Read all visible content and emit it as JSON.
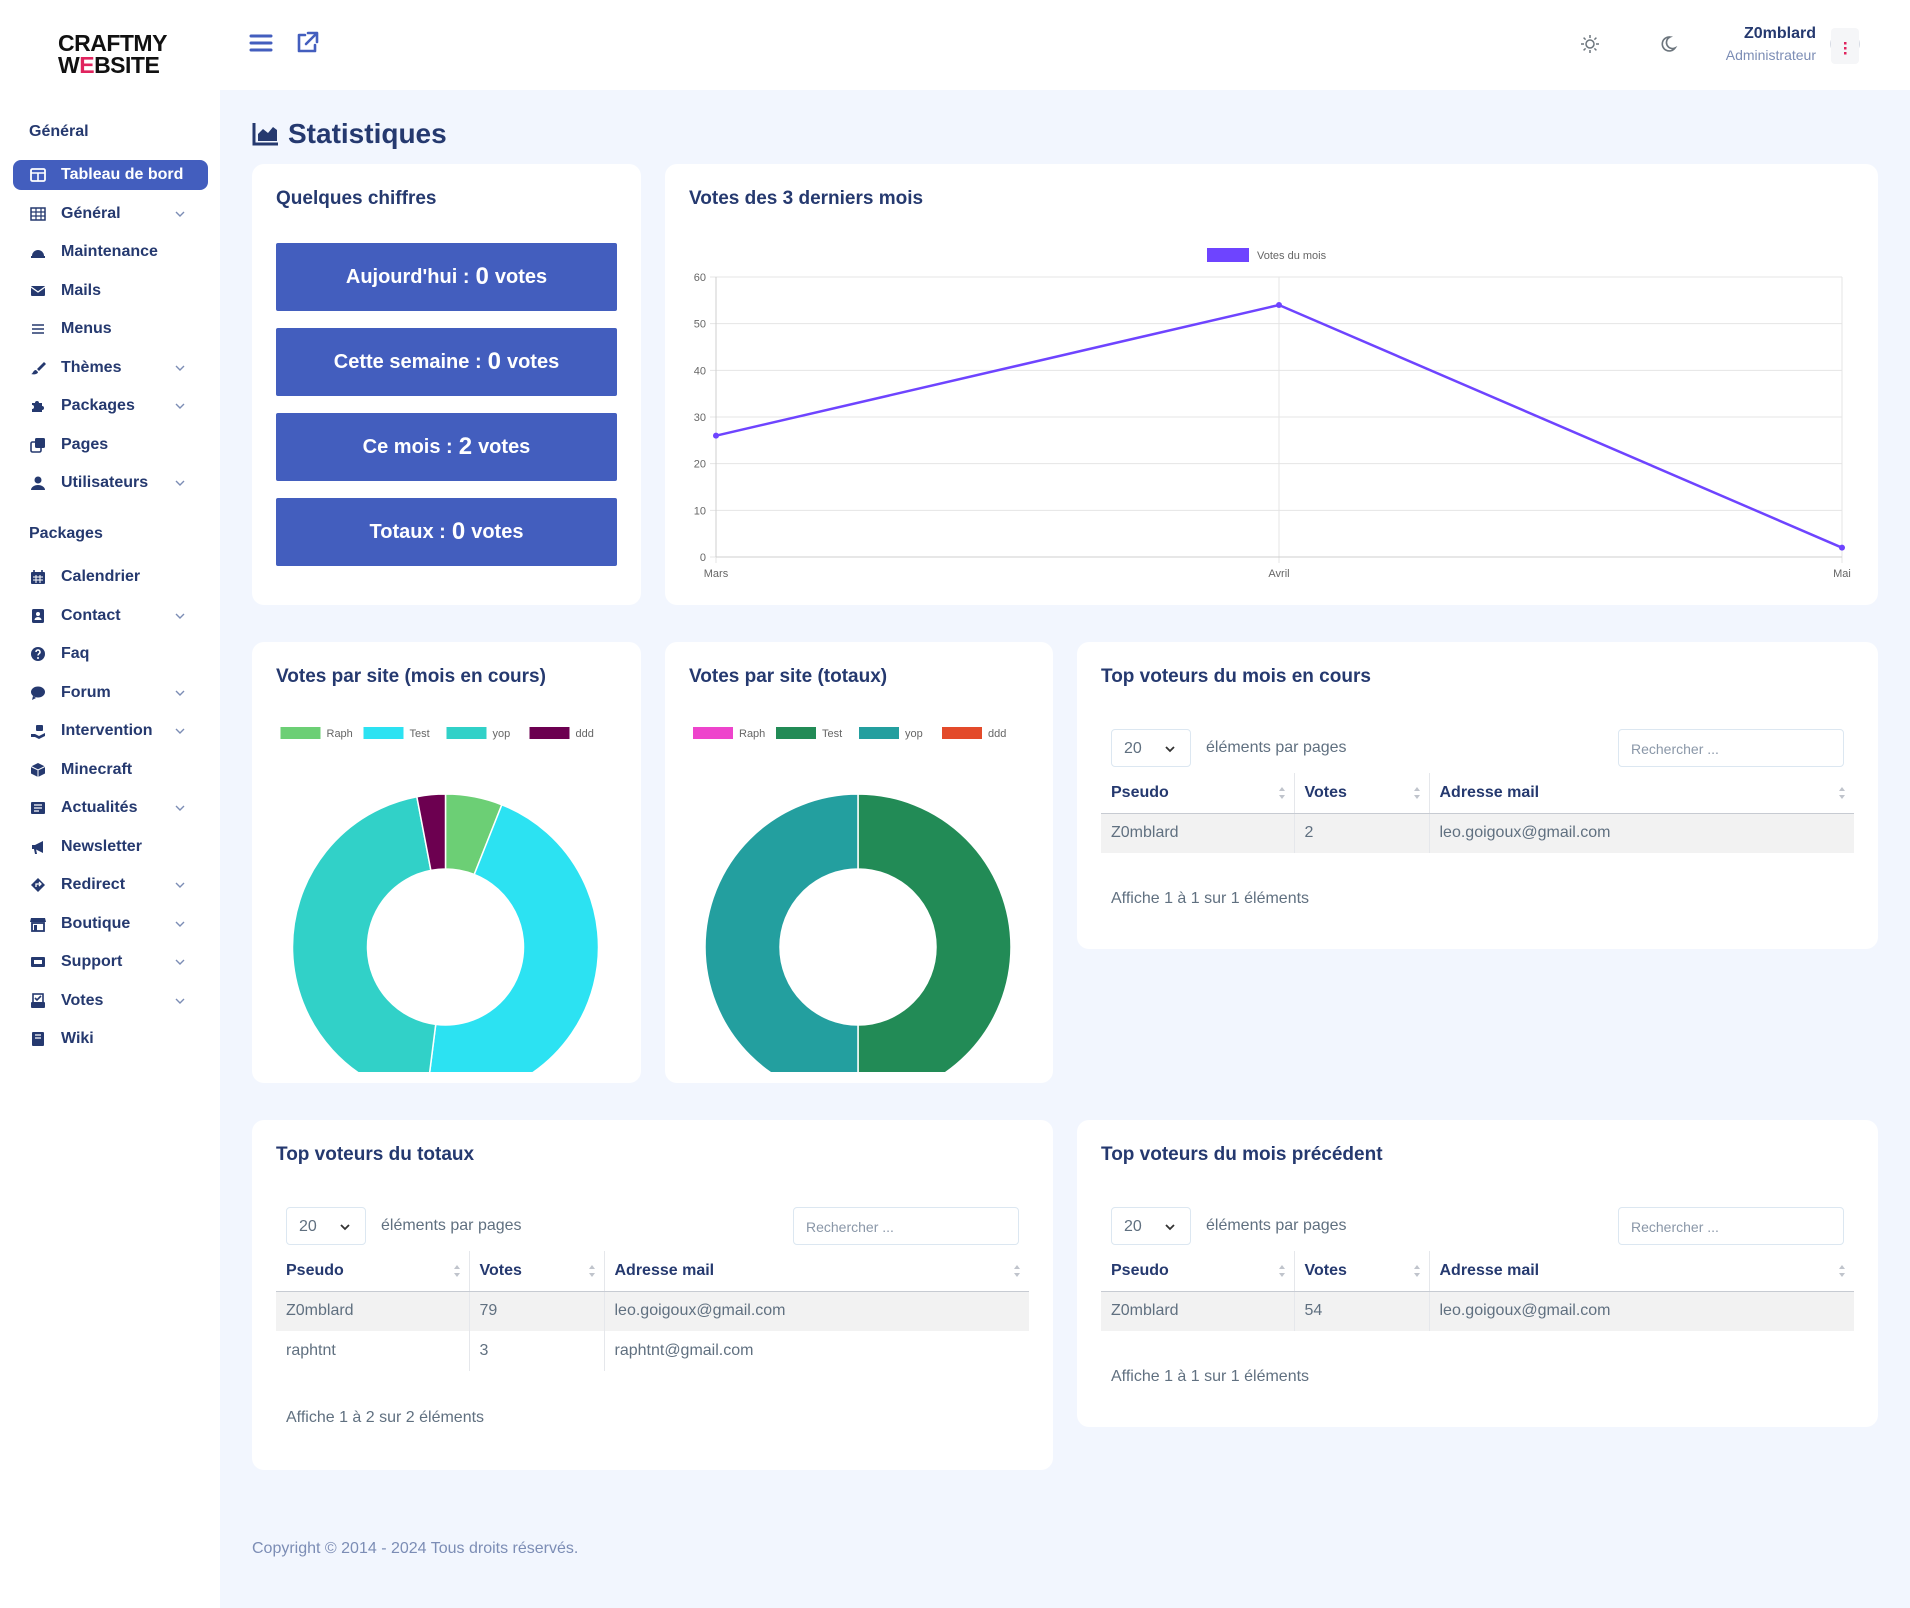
{
  "brand": {
    "line1": "CRAFTMY",
    "line2_a": "W",
    "line2_b": "E",
    "line2_c": "BSITE"
  },
  "sidebar": {
    "section_general": "Général",
    "items_general": [
      {
        "label": "Tableau de bord",
        "icon": "table-columns-icon",
        "active": true,
        "chevron": false
      },
      {
        "label": "Général",
        "icon": "grid-icon",
        "chevron": true
      },
      {
        "label": "Maintenance",
        "icon": "helmet-icon",
        "chevron": false
      },
      {
        "label": "Mails",
        "icon": "envelope-icon",
        "chevron": false
      },
      {
        "label": "Menus",
        "icon": "bars-icon",
        "chevron": false
      },
      {
        "label": "Thèmes",
        "icon": "brush-icon",
        "chevron": true
      },
      {
        "label": "Packages",
        "icon": "puzzle-icon",
        "chevron": true
      },
      {
        "label": "Pages",
        "icon": "copy-icon",
        "chevron": false
      },
      {
        "label": "Utilisateurs",
        "icon": "user-icon",
        "chevron": true
      }
    ],
    "section_packages": "Packages",
    "items_packages": [
      {
        "label": "Calendrier",
        "icon": "calendar-icon",
        "chevron": false
      },
      {
        "label": "Contact",
        "icon": "contact-book-icon",
        "chevron": true
      },
      {
        "label": "Faq",
        "icon": "question-icon",
        "chevron": false
      },
      {
        "label": "Forum",
        "icon": "comment-icon",
        "chevron": true
      },
      {
        "label": "Intervention",
        "icon": "hand-holding-icon",
        "chevron": true
      },
      {
        "label": "Minecraft",
        "icon": "cube-icon",
        "chevron": false
      },
      {
        "label": "Actualités",
        "icon": "newspaper-icon",
        "chevron": true
      },
      {
        "label": "Newsletter",
        "icon": "megaphone-icon",
        "chevron": false
      },
      {
        "label": "Redirect",
        "icon": "diamond-turn-icon",
        "chevron": true
      },
      {
        "label": "Boutique",
        "icon": "store-icon",
        "chevron": true
      },
      {
        "label": "Support",
        "icon": "ticket-icon",
        "chevron": true
      },
      {
        "label": "Votes",
        "icon": "vote-box-icon",
        "chevron": true
      },
      {
        "label": "Wiki",
        "icon": "book-icon",
        "chevron": false
      }
    ]
  },
  "topbar": {
    "user_name": "Z0mblard",
    "user_role": "Administrateur"
  },
  "page": {
    "title": "Statistiques"
  },
  "stats_card": {
    "title": "Quelques chiffres",
    "rows": [
      {
        "prefix": "Aujourd'hui :",
        "value": "0",
        "suffix": "votes"
      },
      {
        "prefix": "Cette semaine :",
        "value": "0",
        "suffix": "votes"
      },
      {
        "prefix": "Ce mois :",
        "value": "2",
        "suffix": "votes"
      },
      {
        "prefix": "Totaux :",
        "value": "0",
        "suffix": "votes"
      }
    ]
  },
  "line_card": {
    "title": "Votes des 3 derniers mois"
  },
  "pie1_card": {
    "title": "Votes par site (mois en cours)"
  },
  "pie2_card": {
    "title": "Votes par site (totaux)"
  },
  "chart_data": [
    {
      "type": "line",
      "title": "",
      "categories": [
        "Mars",
        "Avril",
        "Mai"
      ],
      "series": [
        {
          "name": "Votes du mois",
          "values": [
            26,
            54,
            2
          ],
          "color": "#6e44ff"
        }
      ],
      "ylim": [
        0,
        60
      ],
      "yticks": [
        0,
        10,
        20,
        30,
        40,
        50,
        60
      ],
      "grid": true,
      "legend": "top"
    },
    {
      "type": "pie",
      "donut": true,
      "labels": [
        "Raph",
        "Test",
        "yop",
        "ddd"
      ],
      "values": [
        6,
        46,
        45,
        3
      ],
      "colors": [
        "#6ccf75",
        "#2ce2f2",
        "#31d1c8",
        "#6c0050"
      ],
      "legend": "top"
    },
    {
      "type": "pie",
      "donut": true,
      "labels": [
        "Raph",
        "Test",
        "yop",
        "ddd"
      ],
      "values": [
        0,
        50,
        50,
        0
      ],
      "colors": [
        "#ee44cc",
        "#228b56",
        "#239f9f",
        "#e34a2a"
      ],
      "legend": "top"
    }
  ],
  "table_month": {
    "title": "Top voteurs du mois en cours",
    "length": "20",
    "length_label": "éléments par pages",
    "search_placeholder": "Rechercher ...",
    "headers": [
      "Pseudo",
      "Votes",
      "Adresse mail"
    ],
    "rows": [
      [
        "Z0mblard",
        "2",
        "leo.goigoux@gmail.com"
      ]
    ],
    "info": "Affiche 1 à 1 sur 1 éléments"
  },
  "table_total": {
    "title": "Top voteurs du totaux",
    "length": "20",
    "length_label": "éléments par pages",
    "search_placeholder": "Rechercher ...",
    "headers": [
      "Pseudo",
      "Votes",
      "Adresse mail"
    ],
    "rows": [
      [
        "Z0mblard",
        "79",
        "leo.goigoux@gmail.com"
      ],
      [
        "raphtnt",
        "3",
        "raphtnt@gmail.com"
      ]
    ],
    "info": "Affiche 1 à 2 sur 2 éléments"
  },
  "table_prev": {
    "title": "Top voteurs du mois précédent",
    "length": "20",
    "length_label": "éléments par pages",
    "search_placeholder": "Rechercher ...",
    "headers": [
      "Pseudo",
      "Votes",
      "Adresse mail"
    ],
    "rows": [
      [
        "Z0mblard",
        "54",
        "leo.goigoux@gmail.com"
      ]
    ],
    "info": "Affiche 1 à 1 sur 1 éléments"
  },
  "footer": {
    "text": "Copyright © 2014 - 2024 Tous droits réservés."
  },
  "colors": {
    "primary": "#435ebe",
    "text": "#25396f",
    "background": "#f2f6fe"
  }
}
